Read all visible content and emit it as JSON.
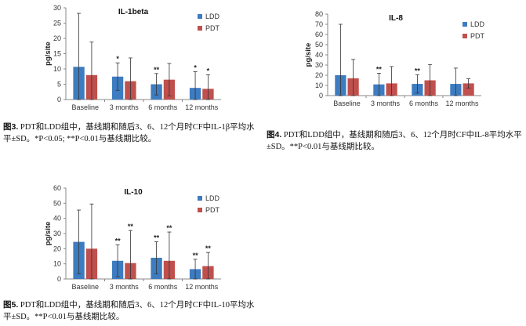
{
  "chart_data": [
    {
      "type": "bar",
      "title": "IL-1beta",
      "ylabel": "pg/site",
      "xlabel": "",
      "ylim": [
        0,
        30
      ],
      "yticks": [
        0,
        5,
        10,
        15,
        20,
        25,
        30
      ],
      "categories": [
        "Baseline",
        "3 months",
        "6 months",
        "12 months"
      ],
      "series": [
        {
          "name": "LDD",
          "color": "#3d7cc0",
          "values": [
            10.7,
            7.5,
            5.0,
            3.8
          ],
          "errors": [
            17.5,
            4.5,
            3.5,
            5.3
          ]
        },
        {
          "name": "PDT",
          "color": "#c0504d",
          "values": [
            8.0,
            6.0,
            6.5,
            3.5
          ],
          "errors": [
            10.8,
            7.6,
            5.3,
            4.6
          ]
        }
      ],
      "annotations": [
        "",
        "*",
        "**",
        "*"
      ],
      "annotations_pdt": [
        "",
        "",
        "",
        "*"
      ],
      "legend_position": "top-right",
      "grid": false,
      "caption_label": "图3.",
      "caption": "PDT和LDD组中，基线期和随后3、6、12个月时CF中IL-1β平均水平±SD。*P<0.05; **P<0.01与基线期比较。"
    },
    {
      "type": "bar",
      "title": "IL-8",
      "ylabel": "pg/site",
      "xlabel": "",
      "ylim": [
        0,
        80
      ],
      "yticks": [
        0,
        10,
        20,
        30,
        40,
        50,
        60,
        70,
        80
      ],
      "categories": [
        "Baseline",
        "3 months",
        "6 months",
        "12 months"
      ],
      "series": [
        {
          "name": "LDD",
          "color": "#3d7cc0",
          "values": [
            20,
            11,
            11.5,
            11.5
          ],
          "errors": [
            50,
            11,
            9,
            15.5
          ]
        },
        {
          "name": "PDT",
          "color": "#c0504d",
          "values": [
            17,
            12,
            15,
            12
          ],
          "errors": [
            18.5,
            16.5,
            15.5,
            4.5
          ]
        }
      ],
      "annotations": [
        "",
        "**",
        "**",
        ""
      ],
      "annotations_pdt": [
        "",
        "",
        "",
        ""
      ],
      "legend_position": "top-right",
      "grid": false,
      "caption_label": "图4.",
      "caption": "PDT和LDD组中，基线期和随后3、6、12个月时CF中IL-8平均水平±SD。**P<0.01与基线期比较。"
    },
    {
      "type": "bar",
      "title": "IL-10",
      "ylabel": "pg/site",
      "xlabel": "",
      "ylim": [
        0,
        60
      ],
      "yticks": [
        0,
        10,
        20,
        30,
        40,
        50,
        60
      ],
      "categories": [
        "Baseline",
        "3 months",
        "6 months",
        "12 months"
      ],
      "series": [
        {
          "name": "LDD",
          "color": "#3d7cc0",
          "values": [
            24.5,
            12,
            14,
            6.5
          ],
          "errors": [
            21,
            10.5,
            10.5,
            6.5
          ]
        },
        {
          "name": "PDT",
          "color": "#c0504d",
          "values": [
            20,
            10.5,
            12,
            8.5
          ],
          "errors": [
            29.5,
            21.5,
            19,
            9
          ]
        }
      ],
      "annotations": [
        "",
        "**",
        "**",
        "**"
      ],
      "annotations_pdt": [
        "",
        "**",
        "**",
        "**"
      ],
      "legend_position": "top-right",
      "grid": false,
      "caption_label": "图5.",
      "caption": "PDT和LDD组中，基线期和随后3、6、12个月时CF中IL-10平均水平±SD。**P<0.01与基线期比较。"
    }
  ]
}
